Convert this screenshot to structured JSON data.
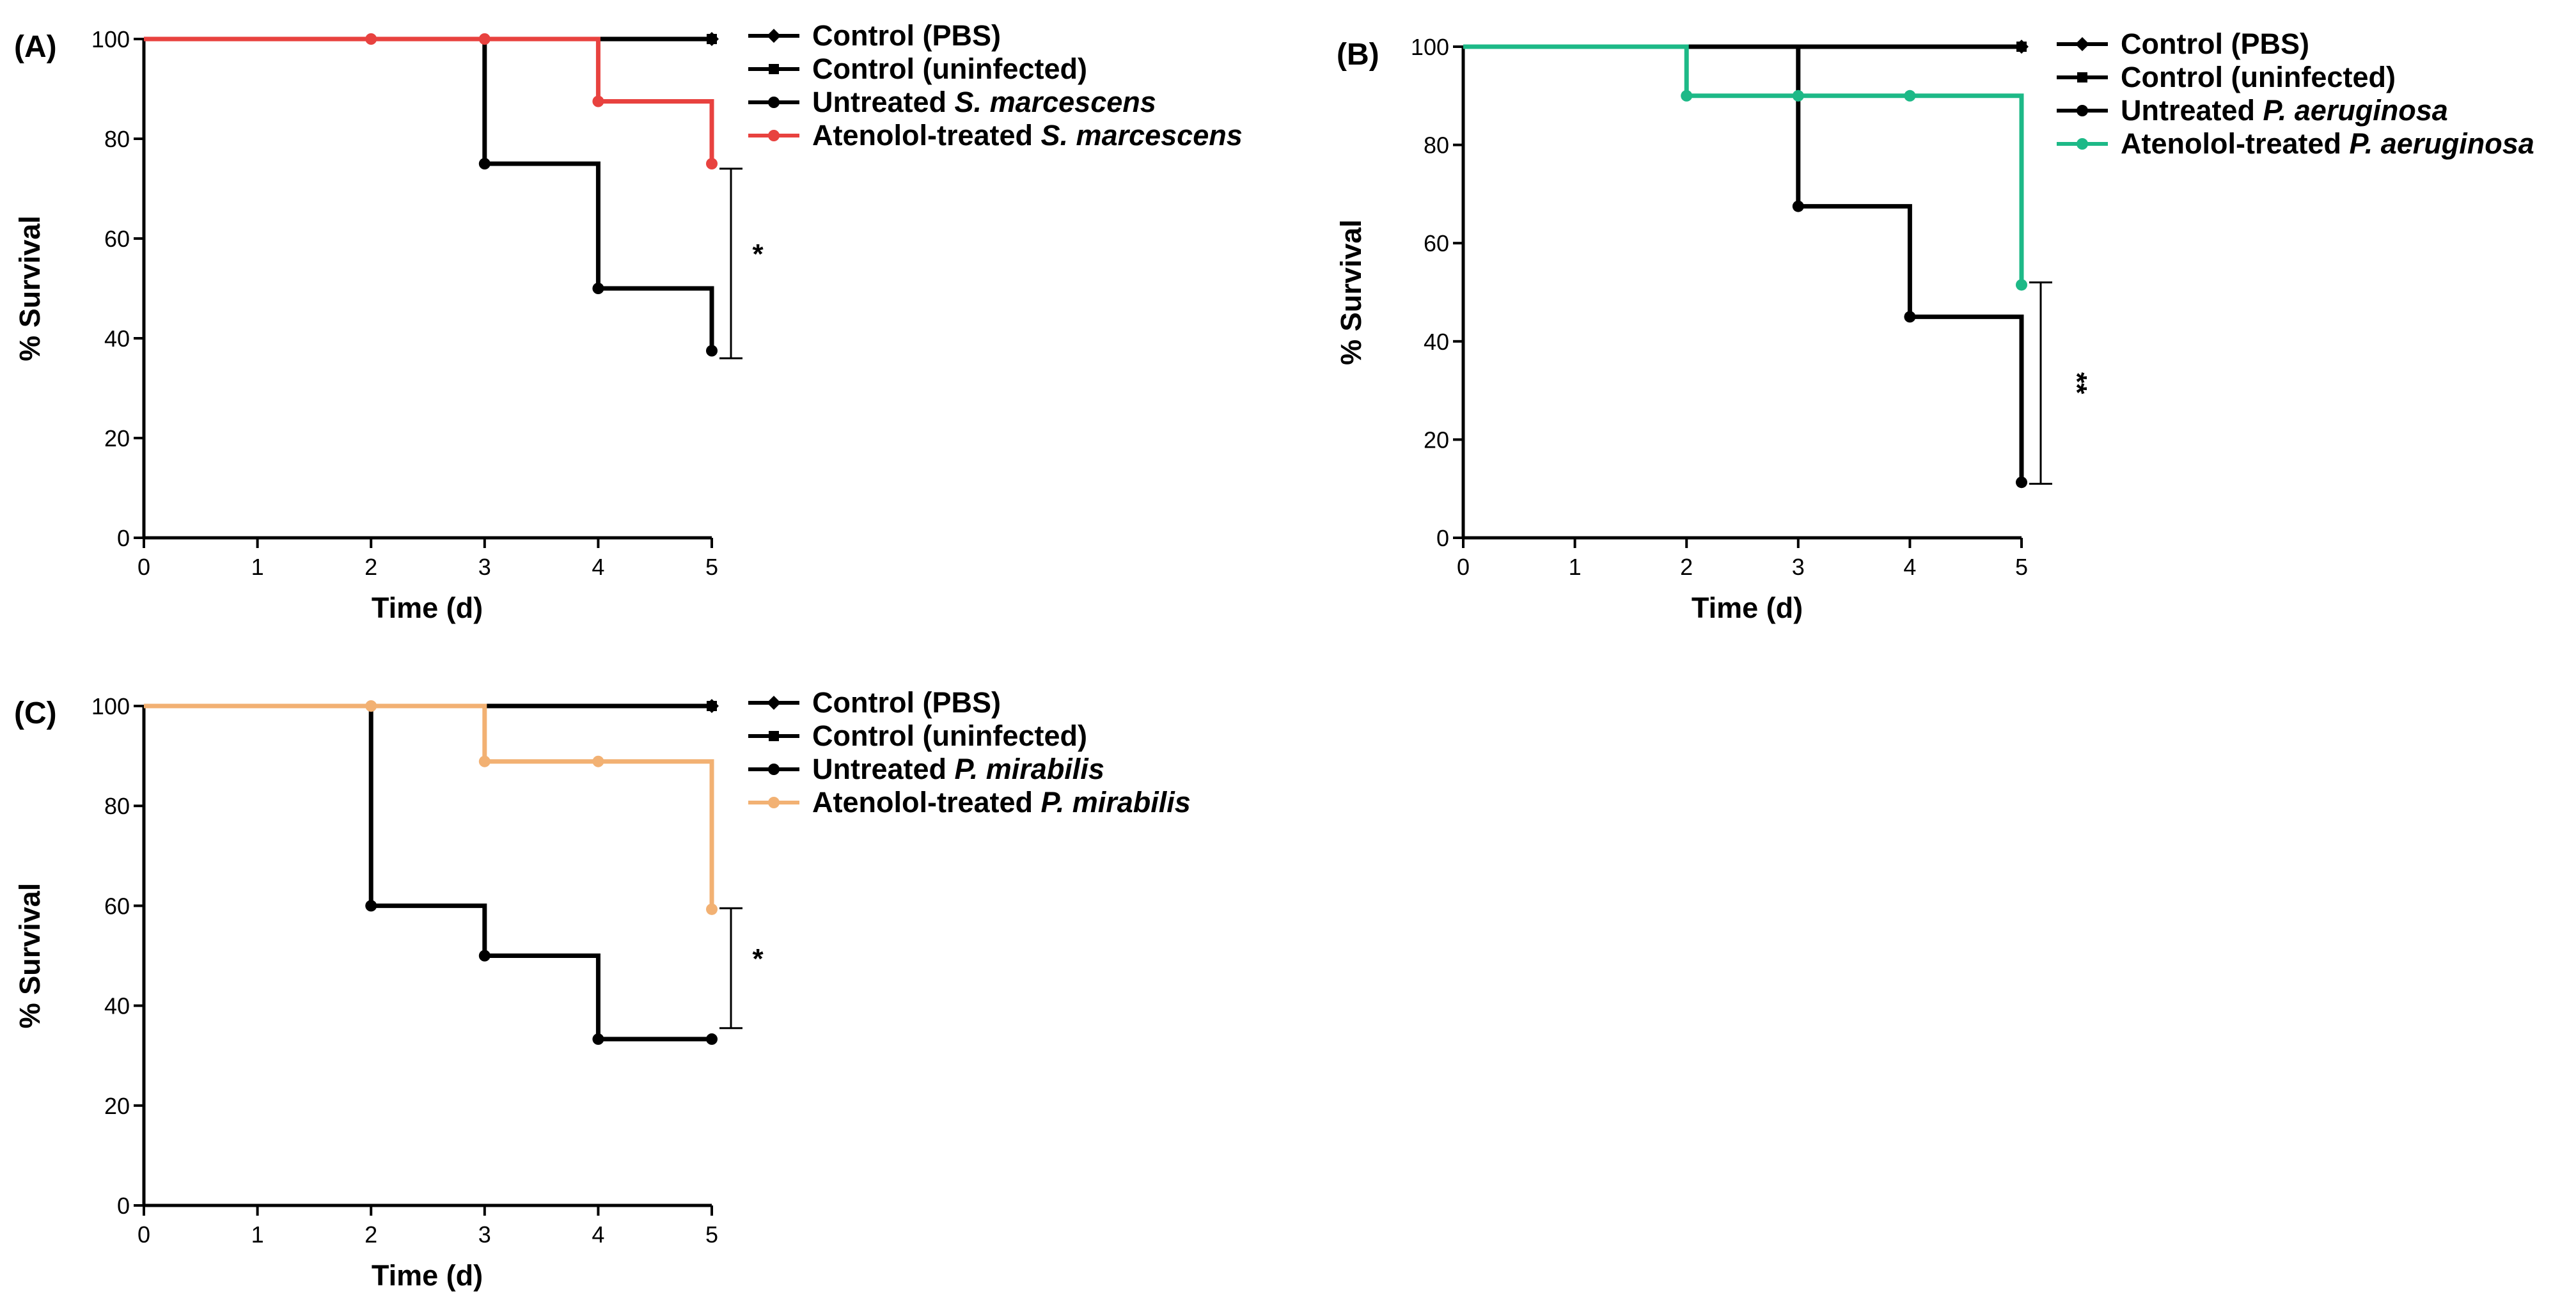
{
  "chart_data": [
    {
      "type": "line",
      "panel": "(A)",
      "xlabel": "Time (d)",
      "ylabel": "% Survival",
      "xlim": [
        0,
        5
      ],
      "ylim": [
        0,
        100
      ],
      "xticks": [
        "0",
        "1",
        "2",
        "3",
        "4",
        "5"
      ],
      "yticks": [
        "0",
        "20",
        "40",
        "60",
        "80",
        "100"
      ],
      "legend_position": "right",
      "series": [
        {
          "name": "Control (PBS)",
          "italic": "",
          "color": "#000000",
          "marker": "diamond",
          "x": [
            0,
            5
          ],
          "y": [
            100,
            100
          ]
        },
        {
          "name": "Control (uninfected)",
          "italic": "",
          "color": "#000000",
          "marker": "square",
          "x": [
            0,
            5
          ],
          "y": [
            100,
            100
          ]
        },
        {
          "name": "Untreated ",
          "italic": "S. marcescens",
          "color": "#000000",
          "marker": "circle",
          "x": [
            0,
            3,
            4,
            5
          ],
          "y": [
            100,
            75,
            50,
            37.5
          ]
        },
        {
          "name": "Atenolol-treated ",
          "italic": "S. marcescens",
          "color": "#e8423f",
          "marker": "circle",
          "x": [
            0,
            2,
            3,
            4,
            5
          ],
          "y": [
            100,
            100,
            100,
            87.5,
            75
          ]
        }
      ],
      "significance": {
        "label": "*",
        "x": 5,
        "y_from": 36,
        "y_to": 74
      }
    },
    {
      "type": "line",
      "panel": "(B)",
      "xlabel": "Time (d)",
      "ylabel": "% Survival",
      "xlim": [
        0,
        5
      ],
      "ylim": [
        0,
        100
      ],
      "xticks": [
        "0",
        "1",
        "2",
        "3",
        "4",
        "5"
      ],
      "yticks": [
        "0",
        "20",
        "40",
        "60",
        "80",
        "100"
      ],
      "legend_position": "right",
      "series": [
        {
          "name": "Control (PBS)",
          "italic": "",
          "color": "#000000",
          "marker": "diamond",
          "x": [
            0,
            5
          ],
          "y": [
            100,
            100
          ]
        },
        {
          "name": "Control (uninfected)",
          "italic": "",
          "color": "#000000",
          "marker": "square",
          "x": [
            0,
            5
          ],
          "y": [
            100,
            100
          ]
        },
        {
          "name": "Untreated ",
          "italic": "P. aeruginosa",
          "color": "#000000",
          "marker": "circle",
          "x": [
            0,
            3,
            4,
            5
          ],
          "y": [
            100,
            67.5,
            45,
            11.3
          ]
        },
        {
          "name": "Atenolol-treated ",
          "italic": "P. aeruginosa",
          "color": "#1db987",
          "marker": "circle",
          "x": [
            0,
            2,
            3,
            4,
            5
          ],
          "y": [
            100,
            90,
            90,
            90,
            51.5
          ]
        }
      ],
      "significance": {
        "label": "**",
        "x": 5,
        "y_from": 11,
        "y_to": 52
      }
    },
    {
      "type": "line",
      "panel": "(C)",
      "xlabel": "Time (d)",
      "ylabel": "% Survival",
      "xlim": [
        0,
        5
      ],
      "ylim": [
        0,
        100
      ],
      "xticks": [
        "0",
        "1",
        "2",
        "3",
        "4",
        "5"
      ],
      "yticks": [
        "0",
        "20",
        "40",
        "60",
        "80",
        "100"
      ],
      "legend_position": "right",
      "series": [
        {
          "name": "Control (PBS)",
          "italic": "",
          "color": "#000000",
          "marker": "diamond",
          "x": [
            0,
            5
          ],
          "y": [
            100,
            100
          ]
        },
        {
          "name": "Control (uninfected)",
          "italic": "",
          "color": "#000000",
          "marker": "square",
          "x": [
            0,
            5
          ],
          "y": [
            100,
            100
          ]
        },
        {
          "name": "Untreated ",
          "italic": "P.  mirabilis",
          "color": "#000000",
          "marker": "circle",
          "x": [
            0,
            2,
            3,
            4,
            5
          ],
          "y": [
            100,
            60,
            50,
            33.3,
            33.3
          ]
        },
        {
          "name": "Atenolol-treated ",
          "italic": "P.  mirabilis",
          "color": "#f2b173",
          "marker": "circle",
          "x": [
            0,
            2,
            3,
            4,
            5
          ],
          "y": [
            100,
            100,
            88.9,
            88.9,
            59.3
          ]
        }
      ],
      "significance": {
        "label": "*",
        "x": 5,
        "y_from": 35.5,
        "y_to": 59.5
      }
    }
  ]
}
